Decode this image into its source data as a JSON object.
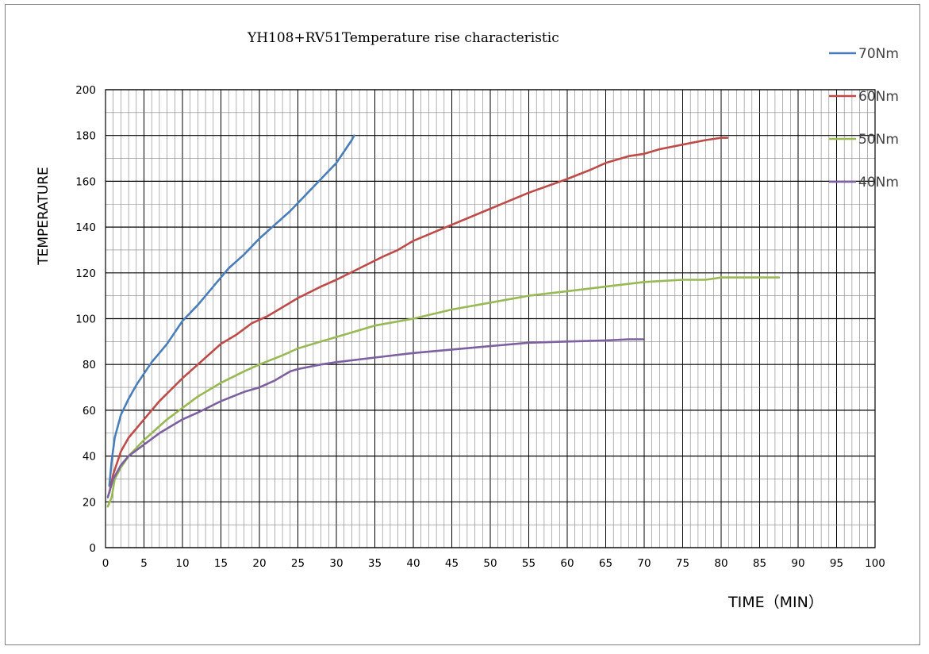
{
  "chart_data": {
    "type": "line",
    "title": "YH108+RV51Temperature rise characteristic",
    "xlabel": "TIME（MIN）",
    "ylabel": "TEMPERATURE",
    "xlim": [
      0,
      100
    ],
    "ylim": [
      0,
      200
    ],
    "x_ticks": [
      "0",
      "5",
      "10",
      "15",
      "20",
      "25",
      "30",
      "35",
      "40",
      "45",
      "50",
      "55",
      "60",
      "65",
      "70",
      "75",
      "80",
      "85",
      "90",
      "95",
      "100"
    ],
    "y_ticks": [
      "0",
      "20",
      "40",
      "60",
      "80",
      "100",
      "120",
      "140",
      "160",
      "180",
      "200"
    ],
    "grid": true,
    "legend_position": "right",
    "series": [
      {
        "name": "70Nm",
        "color": "#4a7ebb",
        "points": [
          [
            0.5,
            27
          ],
          [
            0.8,
            38
          ],
          [
            1.2,
            48
          ],
          [
            2,
            58
          ],
          [
            3,
            65
          ],
          [
            4,
            71
          ],
          [
            5,
            76
          ],
          [
            6,
            81
          ],
          [
            7,
            85
          ],
          [
            8,
            89
          ],
          [
            9,
            94
          ],
          [
            10,
            99
          ],
          [
            12,
            106
          ],
          [
            14,
            114
          ],
          [
            16,
            122
          ],
          [
            18,
            128
          ],
          [
            20,
            135
          ],
          [
            22,
            141
          ],
          [
            24,
            147
          ],
          [
            26,
            154
          ],
          [
            28,
            161
          ],
          [
            30,
            168
          ],
          [
            31,
            173
          ],
          [
            32,
            178
          ],
          [
            32.3,
            180
          ]
        ]
      },
      {
        "name": "60Nm",
        "color": "#be4b48",
        "points": [
          [
            0.5,
            24
          ],
          [
            1,
            32
          ],
          [
            2,
            42
          ],
          [
            3,
            48
          ],
          [
            5,
            56
          ],
          [
            7,
            64
          ],
          [
            10,
            74
          ],
          [
            12,
            80
          ],
          [
            14,
            86
          ],
          [
            15,
            89
          ],
          [
            17,
            93
          ],
          [
            19,
            98
          ],
          [
            21,
            101
          ],
          [
            23,
            105
          ],
          [
            25,
            109
          ],
          [
            28,
            114
          ],
          [
            30,
            117
          ],
          [
            33,
            122
          ],
          [
            36,
            127
          ],
          [
            38,
            130
          ],
          [
            40,
            134
          ],
          [
            45,
            141
          ],
          [
            50,
            148
          ],
          [
            55,
            155
          ],
          [
            60,
            161
          ],
          [
            63,
            165
          ],
          [
            65,
            168
          ],
          [
            68,
            171
          ],
          [
            70,
            172
          ],
          [
            72,
            174
          ],
          [
            75,
            176
          ],
          [
            78,
            178
          ],
          [
            80,
            179
          ],
          [
            80.8,
            179
          ]
        ]
      },
      {
        "name": "50Nm",
        "color": "#98b954",
        "points": [
          [
            0.3,
            18
          ],
          [
            0.8,
            22
          ],
          [
            1.2,
            30
          ],
          [
            2,
            35
          ],
          [
            3,
            40
          ],
          [
            5,
            47
          ],
          [
            8,
            56
          ],
          [
            10,
            61
          ],
          [
            12,
            66
          ],
          [
            15,
            72
          ],
          [
            18,
            77
          ],
          [
            20,
            80
          ],
          [
            23,
            84
          ],
          [
            25,
            87
          ],
          [
            28,
            90
          ],
          [
            30,
            92
          ],
          [
            35,
            97
          ],
          [
            40,
            100
          ],
          [
            45,
            104
          ],
          [
            50,
            107
          ],
          [
            55,
            110
          ],
          [
            60,
            112
          ],
          [
            65,
            114
          ],
          [
            70,
            116
          ],
          [
            75,
            117
          ],
          [
            78,
            117
          ],
          [
            80,
            118
          ],
          [
            87.5,
            118
          ]
        ]
      },
      {
        "name": "40Nm",
        "color": "#7d60a0",
        "points": [
          [
            0.3,
            22
          ],
          [
            1,
            30
          ],
          [
            2,
            36
          ],
          [
            3,
            40
          ],
          [
            5,
            45
          ],
          [
            7,
            50
          ],
          [
            10,
            56
          ],
          [
            12,
            59
          ],
          [
            15,
            64
          ],
          [
            18,
            68
          ],
          [
            20,
            70
          ],
          [
            22,
            73
          ],
          [
            24,
            77
          ],
          [
            25,
            78
          ],
          [
            28,
            80
          ],
          [
            30,
            81
          ],
          [
            35,
            83
          ],
          [
            40,
            85
          ],
          [
            45,
            86.5
          ],
          [
            50,
            88
          ],
          [
            55,
            89.5
          ],
          [
            60,
            90
          ],
          [
            65,
            90.5
          ],
          [
            68,
            91
          ],
          [
            69.8,
            91
          ]
        ]
      }
    ]
  }
}
